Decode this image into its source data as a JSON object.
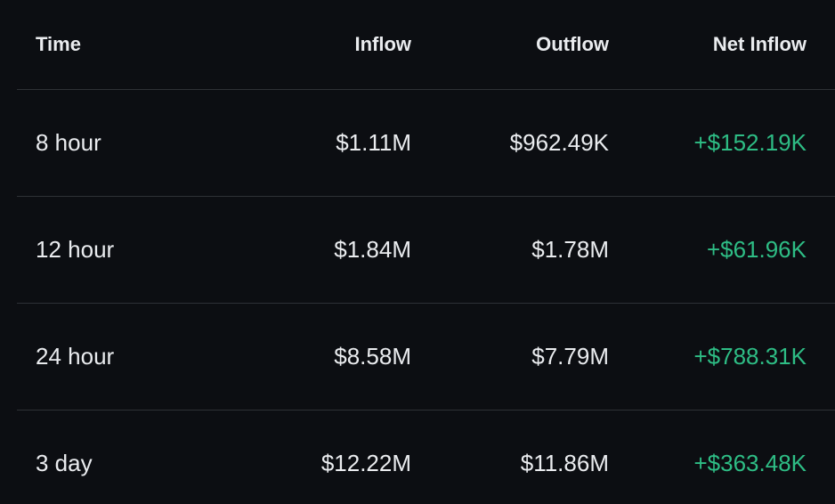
{
  "table": {
    "header": [
      "Time",
      "Inflow",
      "Outflow",
      "Net Inflow"
    ],
    "rows": [
      [
        "8 hour",
        "$1.11M",
        "$962.49K",
        "+$152.19K"
      ],
      [
        "12 hour",
        "$1.84M",
        "$1.78M",
        "+$61.96K"
      ],
      [
        "24 hour",
        "$8.58M",
        "$7.79M",
        "+$788.31K"
      ],
      [
        "3 day",
        "$12.22M",
        "$11.86M",
        "+$363.48K"
      ]
    ]
  }
}
